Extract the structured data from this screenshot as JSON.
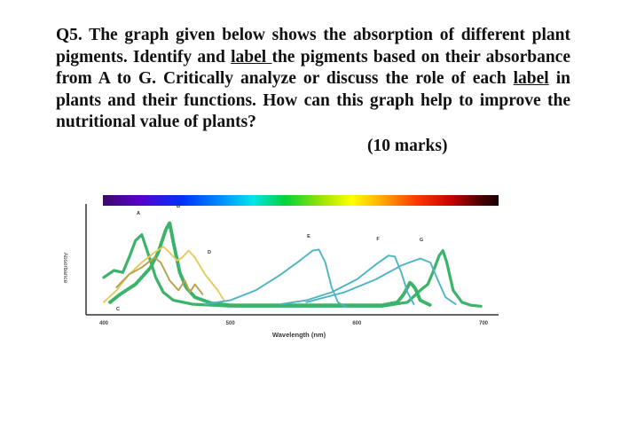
{
  "question": {
    "seg1": "Q5. The graph given below shows the absorption of different plant pigments. Identify and ",
    "label_word_1": "label ",
    "seg2": "the pigments based on their absorbance from A to G. Critically analyze or discuss the role of each ",
    "label_word_2": "label",
    "seg3": " in plants and their functions. How can this graph help to improve the nutritional value of plants?",
    "marks": "(10 marks)"
  },
  "chart_data": {
    "type": "line",
    "xlabel": "Wavelength (nm)",
    "ylabel": "Absorbance",
    "xlim": [
      400,
      700
    ],
    "x_ticks": [
      "400",
      "500",
      "600",
      "700"
    ],
    "peak_labels": [
      "A",
      "B",
      "C",
      "D",
      "E",
      "F",
      "G"
    ],
    "spectrum_bar": true,
    "series": [
      {
        "color": "#3cb36a",
        "style": "solid",
        "points": [
          [
            400,
            0.35
          ],
          [
            408,
            0.42
          ],
          [
            415,
            0.4
          ],
          [
            420,
            0.55
          ],
          [
            425,
            0.72
          ],
          [
            430,
            0.78
          ],
          [
            436,
            0.55
          ],
          [
            441,
            0.35
          ],
          [
            447,
            0.2
          ],
          [
            455,
            0.12
          ],
          [
            470,
            0.08
          ],
          [
            500,
            0.06
          ],
          [
            560,
            0.06
          ],
          [
            620,
            0.06
          ],
          [
            640,
            0.1
          ],
          [
            650,
            0.22
          ],
          [
            656,
            0.28
          ],
          [
            660,
            0.4
          ],
          [
            665,
            0.57
          ],
          [
            668,
            0.62
          ],
          [
            671,
            0.5
          ],
          [
            676,
            0.22
          ],
          [
            683,
            0.1
          ],
          [
            690,
            0.07
          ],
          [
            698,
            0.06
          ]
        ]
      },
      {
        "color": "#3cb36a",
        "style": "dashed",
        "points": [
          [
            405,
            0.1
          ],
          [
            413,
            0.18
          ],
          [
            425,
            0.28
          ],
          [
            437,
            0.45
          ],
          [
            443,
            0.6
          ],
          [
            449,
            0.83
          ],
          [
            452,
            0.9
          ],
          [
            455,
            0.7
          ],
          [
            460,
            0.4
          ],
          [
            465,
            0.25
          ],
          [
            472,
            0.15
          ],
          [
            485,
            0.09
          ],
          [
            500,
            0.07
          ],
          [
            560,
            0.07
          ],
          [
            620,
            0.07
          ],
          [
            632,
            0.1
          ],
          [
            637,
            0.18
          ],
          [
            642,
            0.3
          ],
          [
            646,
            0.24
          ],
          [
            650,
            0.12
          ],
          [
            658,
            0.07
          ]
        ]
      },
      {
        "color": "#e4cb5c",
        "style": "solid",
        "points": [
          [
            400,
            0.1
          ],
          [
            410,
            0.22
          ],
          [
            420,
            0.38
          ],
          [
            430,
            0.5
          ],
          [
            440,
            0.6
          ],
          [
            447,
            0.66
          ],
          [
            452,
            0.6
          ],
          [
            458,
            0.52
          ],
          [
            462,
            0.55
          ],
          [
            467,
            0.62
          ],
          [
            472,
            0.55
          ],
          [
            480,
            0.38
          ],
          [
            490,
            0.22
          ],
          [
            495,
            0.12
          ]
        ]
      },
      {
        "color": "#b8a04c",
        "style": "solid",
        "points": [
          [
            410,
            0.25
          ],
          [
            420,
            0.38
          ],
          [
            430,
            0.45
          ],
          [
            440,
            0.55
          ],
          [
            445,
            0.5
          ],
          [
            452,
            0.32
          ],
          [
            459,
            0.22
          ],
          [
            464,
            0.32
          ],
          [
            468,
            0.2
          ],
          [
            472,
            0.28
          ],
          [
            478,
            0.18
          ]
        ]
      },
      {
        "color": "#4bb5c2",
        "style": "solid",
        "points": [
          [
            480,
            0.08
          ],
          [
            500,
            0.12
          ],
          [
            520,
            0.22
          ],
          [
            540,
            0.38
          ],
          [
            555,
            0.52
          ],
          [
            565,
            0.62
          ],
          [
            570,
            0.63
          ],
          [
            575,
            0.5
          ],
          [
            580,
            0.25
          ],
          [
            585,
            0.1
          ],
          [
            592,
            0.05
          ]
        ]
      },
      {
        "color": "#4bb5c2",
        "style": "solid",
        "points": [
          [
            540,
            0.08
          ],
          [
            560,
            0.12
          ],
          [
            580,
            0.2
          ],
          [
            600,
            0.33
          ],
          [
            615,
            0.48
          ],
          [
            625,
            0.57
          ],
          [
            630,
            0.56
          ],
          [
            635,
            0.4
          ],
          [
            640,
            0.2
          ],
          [
            645,
            0.08
          ]
        ]
      },
      {
        "color": "#4bb5c2",
        "style": "solid",
        "points": [
          [
            560,
            0.1
          ],
          [
            590,
            0.2
          ],
          [
            615,
            0.33
          ],
          [
            635,
            0.47
          ],
          [
            650,
            0.54
          ],
          [
            658,
            0.5
          ],
          [
            663,
            0.35
          ],
          [
            670,
            0.15
          ],
          [
            678,
            0.08
          ]
        ]
      }
    ]
  }
}
